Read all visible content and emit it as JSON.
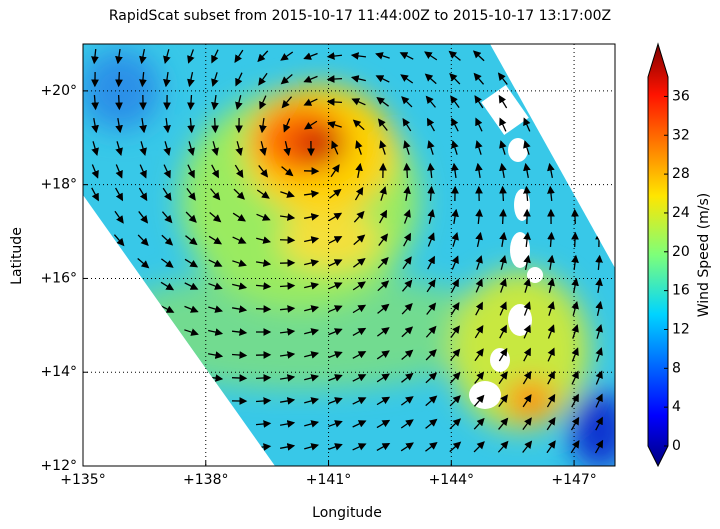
{
  "chart_data": {
    "type": "map",
    "title": "RapidScat subset from 2015-10-17 11:44:00Z to 2015-10-17 13:17:00Z",
    "x_label": "Longitude",
    "y_label": "Latitude",
    "xlim": [
      135,
      148
    ],
    "ylim": [
      12,
      21
    ],
    "xticks": [
      {
        "value": 135,
        "label": "+135°"
      },
      {
        "value": 138,
        "label": "+138°"
      },
      {
        "value": 141,
        "label": "+141°"
      },
      {
        "value": 144,
        "label": "+144°"
      },
      {
        "value": 147,
        "label": "+147°"
      }
    ],
    "yticks": [
      {
        "value": 12,
        "label": "+12°"
      },
      {
        "value": 14,
        "label": "+14°"
      },
      {
        "value": 16,
        "label": "+16°"
      },
      {
        "value": 18,
        "label": "+18°"
      },
      {
        "value": 20,
        "label": "+20°"
      }
    ],
    "grid": true,
    "colorbar": {
      "label": "Wind Speed (m/s)",
      "lim": [
        0,
        38
      ],
      "ticks": [
        0,
        4,
        8,
        12,
        16,
        20,
        24,
        28,
        32,
        36
      ],
      "colormap": "jet"
    }
  }
}
